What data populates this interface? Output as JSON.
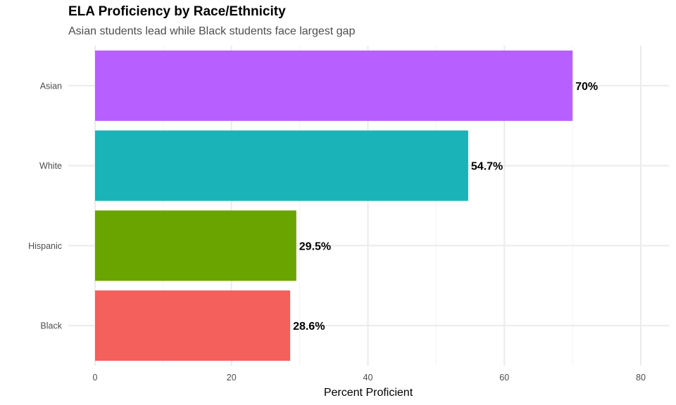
{
  "chart_data": {
    "type": "bar",
    "orientation": "horizontal",
    "title": "ELA Proficiency by Race/Ethnicity",
    "subtitle": "Asian students lead while Black students face largest gap",
    "xlabel": "Percent Proficient",
    "ylabel": "",
    "xlim": [
      0,
      80
    ],
    "x_ticks": [
      0,
      20,
      40,
      60,
      80
    ],
    "grid": true,
    "legend": "none",
    "categories": [
      "Asian",
      "White",
      "Hispanic",
      "Black"
    ],
    "values": [
      70,
      54.7,
      29.5,
      28.6
    ],
    "data_labels": [
      "70%",
      "54.7%",
      "29.5%",
      "28.6%"
    ],
    "colors": [
      "#B75FFF",
      "#19B3B8",
      "#6AA400",
      "#F4605C"
    ]
  }
}
